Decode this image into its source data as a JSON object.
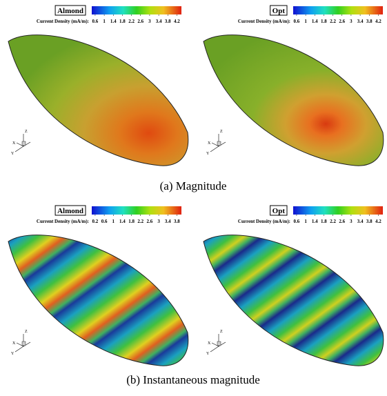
{
  "panels": [
    {
      "label": "Almond",
      "colorbar_title": "Current Density (mA/m):",
      "range": [
        0.45,
        4.4
      ],
      "ticks": [
        0.6,
        1,
        1.4,
        1.8,
        2.2,
        2.6,
        3,
        3.4,
        3.8,
        4.2
      ],
      "axes": [
        "Z",
        "X",
        "Y"
      ]
    },
    {
      "label": "Opt",
      "colorbar_title": "Current Density (mA/m):",
      "range": [
        0.45,
        4.4
      ],
      "ticks": [
        0.6,
        1,
        1.4,
        1.8,
        2.2,
        2.6,
        3,
        3.4,
        3.8,
        4.2
      ],
      "axes": [
        "Z",
        "X",
        "Y"
      ]
    },
    {
      "label": "Almond",
      "colorbar_title": "Current Density (mA/m):",
      "range": [
        0.05,
        4.0
      ],
      "ticks": [
        0.2,
        0.6,
        1,
        1.4,
        1.8,
        2.2,
        2.6,
        3,
        3.4,
        3.8
      ],
      "axes": [
        "Z",
        "X",
        "Y"
      ]
    },
    {
      "label": "Opt",
      "colorbar_title": "Current Density (mA/m):",
      "range": [
        0.45,
        4.4
      ],
      "ticks": [
        0.6,
        1,
        1.4,
        1.8,
        2.2,
        2.6,
        3,
        3.4,
        3.8,
        4.2
      ],
      "axes": [
        "Z",
        "X",
        "Y"
      ]
    }
  ],
  "captions": [
    "(a) Magnitude",
    "(b) Instantaneous magnitude"
  ]
}
